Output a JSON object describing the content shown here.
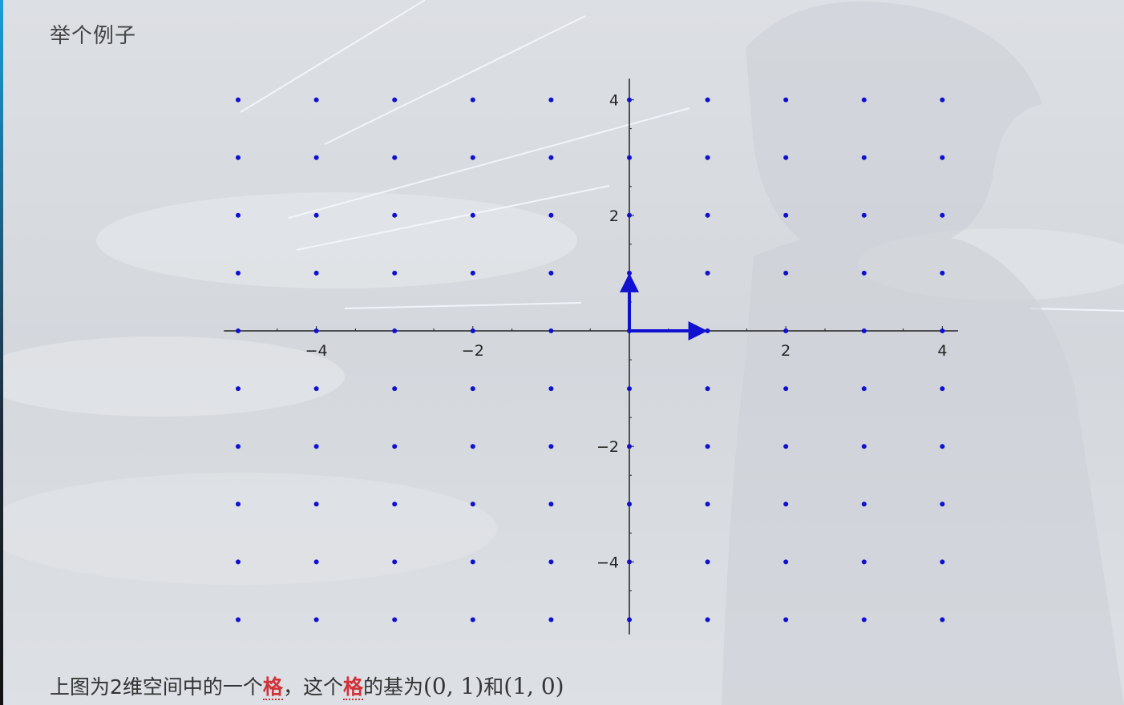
{
  "heading": "举个例子",
  "caption": {
    "part1": "上图为2维空间中的一个",
    "lattice_word_1": "格",
    "part2": "，这个",
    "lattice_word_2": "格",
    "part3": "的基为",
    "basis_1": "(0, 1)",
    "conjunction": "和",
    "basis_2": "(1, 0)"
  },
  "colors": {
    "point": "#1010d0",
    "vector": "#1010d0",
    "axis": "#222222",
    "highlight": "#d0323a"
  },
  "chart_data": {
    "type": "scatter",
    "title": "",
    "xlabel": "",
    "ylabel": "",
    "xlim": [
      -5.1,
      4.2
    ],
    "ylim": [
      -5.2,
      4.2
    ],
    "x_ticks": [
      -4,
      -2,
      2,
      4
    ],
    "y_ticks": [
      4,
      2,
      -2,
      -4
    ],
    "x_tick_labels": [
      "−4",
      "−2",
      "2",
      "4"
    ],
    "y_tick_labels": [
      "4",
      "2",
      "−2",
      "−4"
    ],
    "lattice_x": [
      -5,
      -4,
      -3,
      -2,
      -1,
      0,
      1,
      2,
      3,
      4
    ],
    "lattice_y": [
      -5,
      -4,
      -3,
      -2,
      -1,
      0,
      1,
      2,
      3,
      4
    ],
    "vectors": [
      {
        "from": [
          0,
          0
        ],
        "to": [
          0,
          1
        ]
      },
      {
        "from": [
          0,
          0
        ],
        "to": [
          1,
          0
        ]
      }
    ],
    "grid": false
  }
}
